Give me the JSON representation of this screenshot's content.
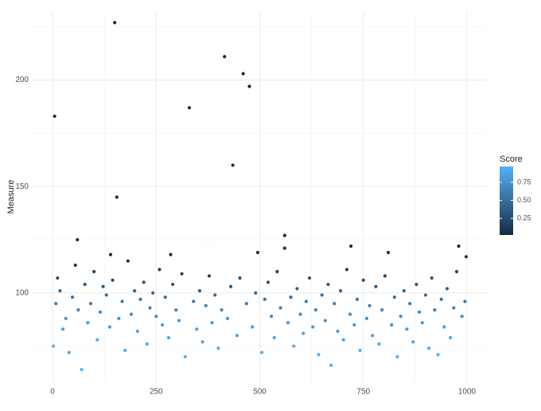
{
  "chart_data": {
    "type": "scatter",
    "ylabel": "Measure",
    "xlim": [
      -50,
      1048
    ],
    "ylim": [
      58,
      232
    ],
    "xticks": [
      0,
      250,
      500,
      750,
      1000
    ],
    "yticks": [
      100,
      150,
      200
    ],
    "grid": true,
    "x": [
      5,
      150,
      155,
      60,
      330,
      415,
      435,
      460,
      475,
      560,
      560,
      720,
      810,
      980,
      495,
      285,
      140,
      2,
      8,
      12,
      18,
      25,
      32,
      40,
      48,
      55,
      62,
      70,
      78,
      85,
      92,
      100,
      108,
      115,
      122,
      130,
      138,
      145,
      160,
      168,
      175,
      182,
      190,
      198,
      205,
      212,
      220,
      228,
      235,
      242,
      250,
      258,
      265,
      272,
      280,
      290,
      298,
      305,
      312,
      320,
      340,
      348,
      355,
      362,
      370,
      378,
      385,
      392,
      400,
      408,
      422,
      430,
      445,
      452,
      468,
      482,
      490,
      505,
      512,
      520,
      528,
      535,
      542,
      550,
      568,
      575,
      582,
      590,
      598,
      605,
      612,
      620,
      628,
      635,
      642,
      650,
      658,
      665,
      672,
      680,
      688,
      695,
      702,
      710,
      718,
      728,
      735,
      742,
      750,
      758,
      765,
      772,
      780,
      788,
      795,
      802,
      818,
      825,
      832,
      840,
      848,
      855,
      862,
      870,
      878,
      885,
      892,
      900,
      908,
      915,
      922,
      930,
      938,
      945,
      952,
      960,
      968,
      975,
      988,
      995,
      998
    ],
    "y": [
      183,
      227,
      145,
      125,
      187,
      211,
      160,
      203,
      197,
      127,
      121,
      122,
      119,
      122,
      119,
      118,
      118,
      75,
      95,
      107,
      101,
      83,
      88,
      72,
      98,
      113,
      92,
      64,
      104,
      86,
      95,
      110,
      78,
      91,
      103,
      99,
      84,
      106,
      88,
      96,
      73,
      115,
      90,
      101,
      82,
      97,
      105,
      76,
      93,
      100,
      89,
      111,
      85,
      98,
      79,
      104,
      92,
      87,
      109,
      70,
      96,
      83,
      101,
      77,
      94,
      108,
      86,
      99,
      74,
      92,
      88,
      103,
      80,
      107,
      95,
      84,
      100,
      72,
      97,
      105,
      89,
      79,
      110,
      93,
      86,
      98,
      75,
      102,
      90,
      81,
      96,
      107,
      84,
      92,
      71,
      99,
      87,
      104,
      66,
      95,
      82,
      101,
      78,
      111,
      90,
      85,
      97,
      73,
      106,
      88,
      94,
      80,
      103,
      76,
      92,
      108,
      85,
      98,
      70,
      89,
      101,
      83,
      95,
      77,
      104,
      91,
      86,
      99,
      74,
      107,
      92,
      71,
      97,
      84,
      102,
      79,
      93,
      110,
      89,
      96,
      117
    ],
    "score": [
      0.05,
      0.02,
      0.03,
      0.05,
      0.03,
      0.02,
      0.03,
      0.02,
      0.02,
      0.04,
      0.05,
      0.05,
      0.08,
      0.05,
      0.08,
      0.08,
      0.08,
      0.94,
      0.62,
      0.28,
      0.45,
      0.82,
      0.75,
      0.93,
      0.55,
      0.12,
      0.66,
      0.96,
      0.33,
      0.78,
      0.6,
      0.2,
      0.88,
      0.68,
      0.36,
      0.48,
      0.8,
      0.3,
      0.76,
      0.58,
      0.92,
      0.1,
      0.7,
      0.42,
      0.84,
      0.52,
      0.32,
      0.9,
      0.64,
      0.44,
      0.74,
      0.18,
      0.8,
      0.5,
      0.86,
      0.34,
      0.66,
      0.78,
      0.22,
      0.95,
      0.58,
      0.82,
      0.4,
      0.88,
      0.62,
      0.24,
      0.78,
      0.48,
      0.92,
      0.66,
      0.74,
      0.36,
      0.86,
      0.28,
      0.6,
      0.8,
      0.44,
      0.94,
      0.54,
      0.3,
      0.7,
      0.86,
      0.2,
      0.64,
      0.78,
      0.5,
      0.92,
      0.38,
      0.68,
      0.84,
      0.58,
      0.28,
      0.8,
      0.66,
      0.95,
      0.48,
      0.74,
      0.34,
      0.97,
      0.6,
      0.82,
      0.42,
      0.88,
      0.18,
      0.7,
      0.78,
      0.54,
      0.92,
      0.3,
      0.74,
      0.62,
      0.84,
      0.38,
      0.9,
      0.66,
      0.24,
      0.78,
      0.5,
      0.95,
      0.72,
      0.42,
      0.82,
      0.6,
      0.88,
      0.34,
      0.68,
      0.78,
      0.48,
      0.92,
      0.28,
      0.64,
      0.95,
      0.54,
      0.8,
      0.4,
      0.86,
      0.62,
      0.2,
      0.72,
      0.56,
      0.1
    ],
    "colorbar": {
      "title": "Score",
      "limits": [
        0.02,
        0.97
      ],
      "low": "#132B43",
      "high": "#56B1F7",
      "ticks": [
        {
          "value": 0.25,
          "label": "0.25"
        },
        {
          "value": 0.5,
          "label": "0.50"
        },
        {
          "value": 0.75,
          "label": "0.75"
        }
      ]
    }
  }
}
